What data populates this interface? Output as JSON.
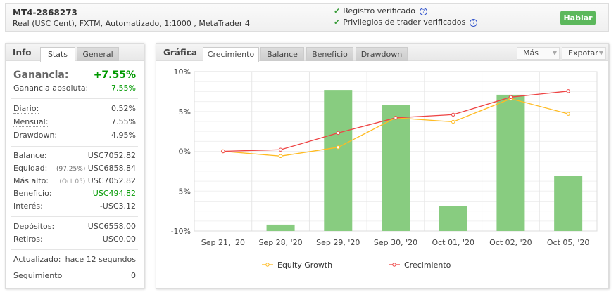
{
  "header": {
    "account": "MT4-2868273",
    "sub_pre": "Real (USC Cent), ",
    "broker": "FXTM",
    "sub_post": ", Automatizado, 1:1000 , MetaTrader 4",
    "verified": [
      "Registro verificado",
      "Privilegios de trader verificados"
    ],
    "help": "?",
    "talk_button": "Hablar"
  },
  "info": {
    "title": "Info",
    "tabs": [
      "Stats",
      "General"
    ],
    "gain_label": "Ganancia:",
    "gain_value": "+7.55%",
    "abs_label": "Ganancia absoluta:",
    "abs_value": "+7.55%",
    "rows1": [
      {
        "l": "Diario:",
        "r": "0.52%"
      },
      {
        "l": "Mensual:",
        "r": "7.55%"
      },
      {
        "l": "Drawdown:",
        "r": "4.95%"
      }
    ],
    "balance": {
      "l": "Balance:",
      "r": "USC7052.82"
    },
    "equity": {
      "l": "Equidad:",
      "note": "(97.25%)",
      "r": "USC6858.84"
    },
    "highest": {
      "l": "Más alto:",
      "note": "(Oct 05)",
      "r": "USC7052.82"
    },
    "profit": {
      "l": "Beneficio:",
      "r": "USC494.82"
    },
    "interest": {
      "l": "Interés:",
      "r": "-USC3.12"
    },
    "deposits": {
      "l": "Depósitos:",
      "r": "USC6558.00"
    },
    "withdrawals": {
      "l": "Retiros:",
      "r": "USC0.00"
    },
    "updated": {
      "l": "Actualizado:",
      "r": "hace 12 segundos"
    },
    "tracking": {
      "l": "Seguimiento",
      "r": "0"
    }
  },
  "chart_panel": {
    "title": "Gráfica",
    "tabs": [
      "Crecimiento",
      "Balance",
      "Beneficio",
      "Drawdown"
    ],
    "more": "Más",
    "export": "Expotar"
  },
  "colors": {
    "bar": "#88cc80",
    "growth": "#ee4444",
    "equity": "#ffbb22"
  },
  "chart_data": {
    "type": "bar+line",
    "categories": [
      "Sep 21, '20",
      "Sep 28, '20",
      "Sep 29, '20",
      "Sep 30, '20",
      "Oct 01, '20",
      "Oct 02, '20",
      "Oct 05, '20"
    ],
    "ylim": [
      -10,
      10
    ],
    "yticks": [
      "10%",
      "5%",
      "0%",
      "-5%",
      "-10%"
    ],
    "ytick_values": [
      10,
      5,
      0,
      -5,
      -10
    ],
    "bars": [
      null,
      -9.2,
      7.7,
      5.8,
      -6.9,
      7.1,
      -3.1
    ],
    "series": [
      {
        "name": "Equity Growth",
        "values": [
          0,
          -0.6,
          0.5,
          4.2,
          3.7,
          6.6,
          4.7
        ]
      },
      {
        "name": "Crecimiento",
        "values": [
          0,
          0.2,
          2.3,
          4.2,
          4.6,
          6.8,
          7.55
        ]
      }
    ],
    "legend": "bottom"
  }
}
